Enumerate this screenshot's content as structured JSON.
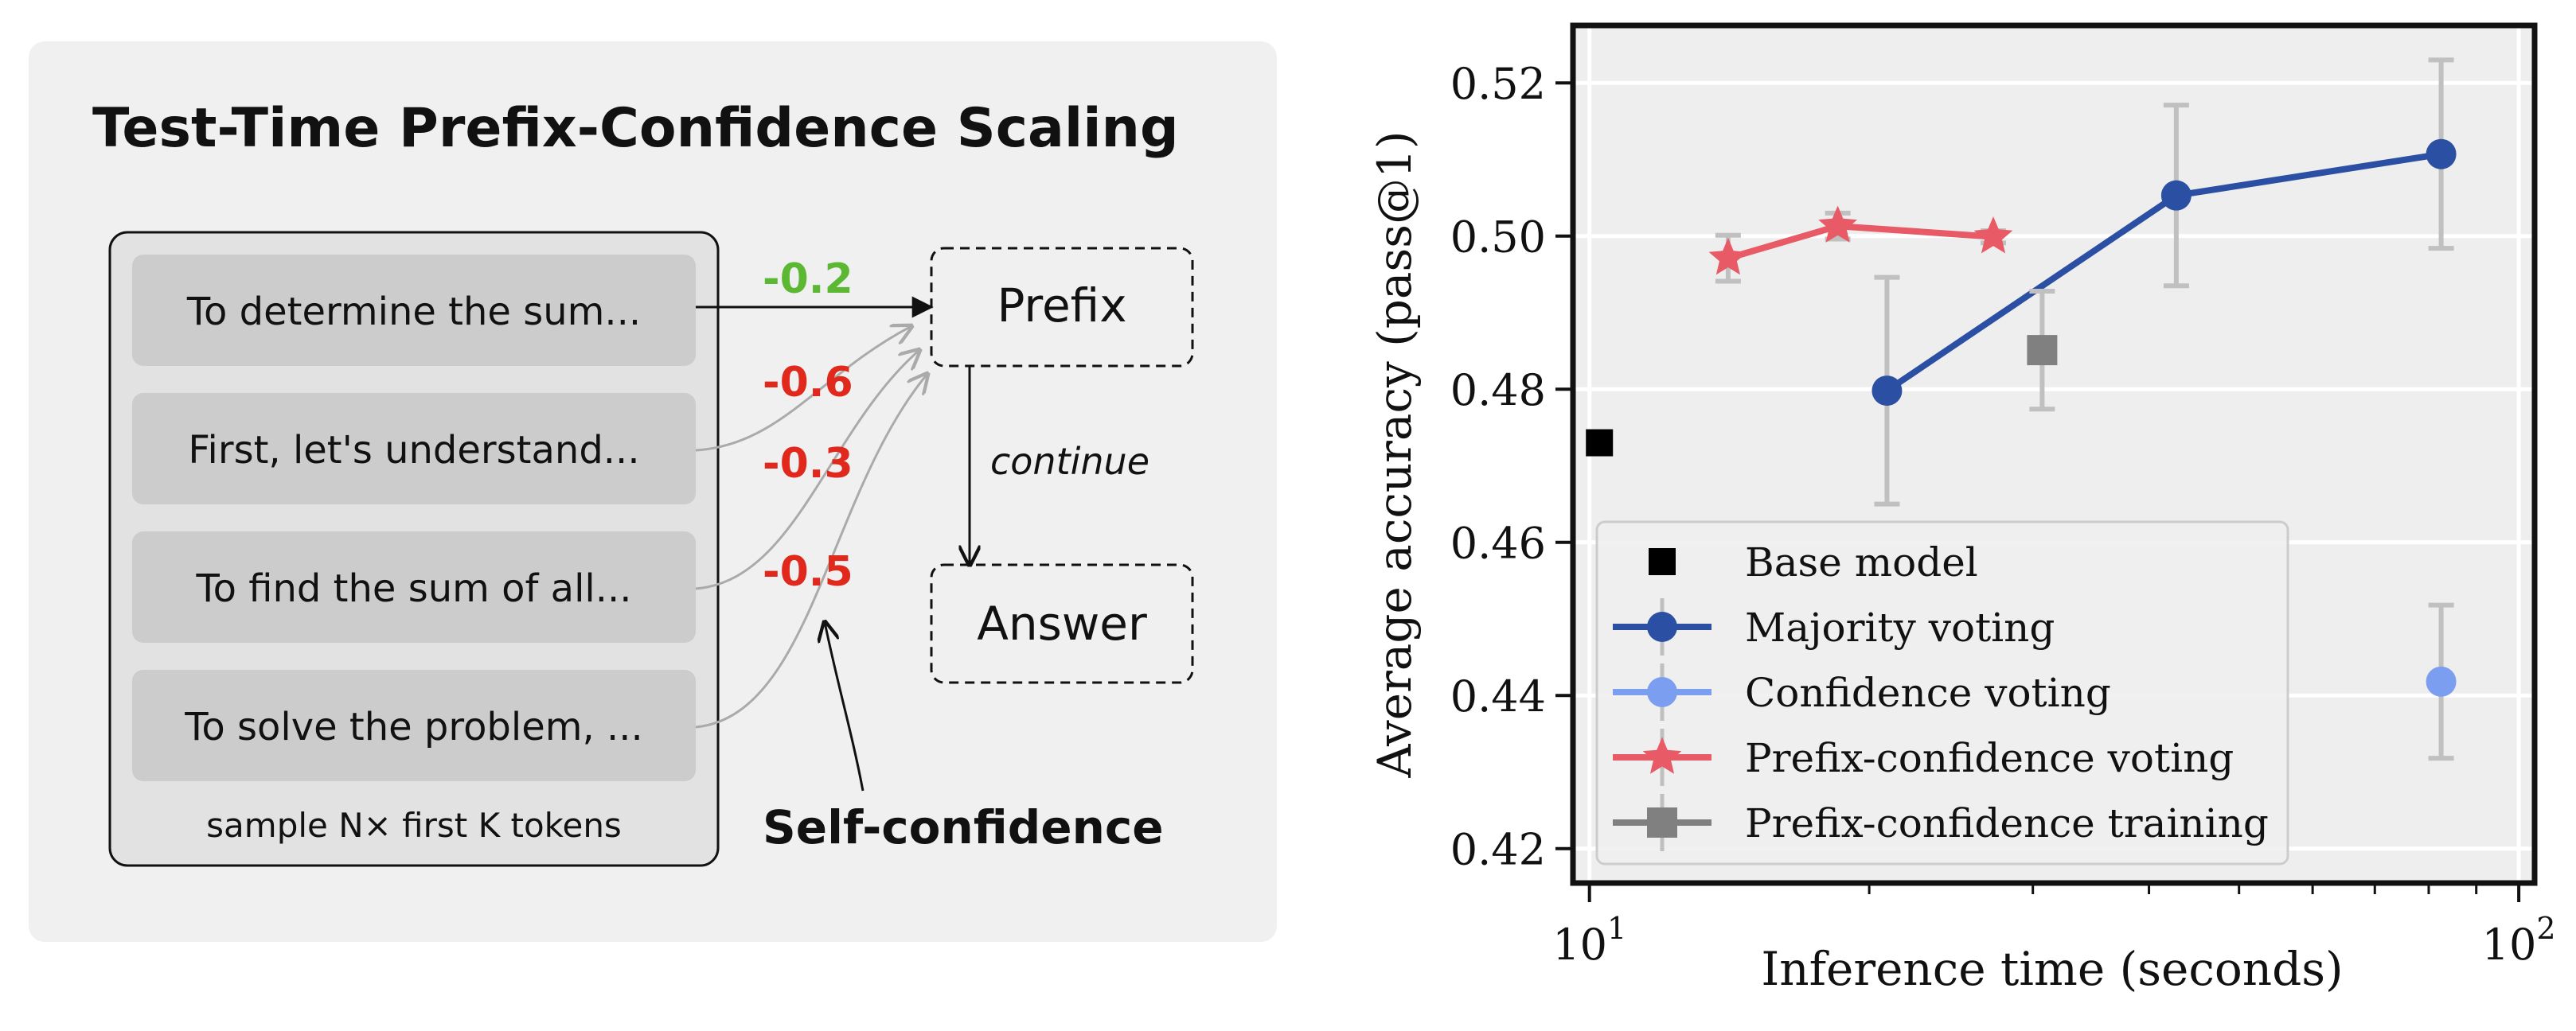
{
  "diagram": {
    "title": "Test-Time Prefix-Confidence Scaling",
    "samples": [
      "To determine the sum...",
      "First, let's understand...",
      "To find the sum of all...",
      "To solve the problem, ..."
    ],
    "sample_caption": "sample N× first K tokens",
    "scores": [
      "-0.2",
      "-0.6",
      "-0.3",
      "-0.5"
    ],
    "prefix_label": "Prefix",
    "continue_label": "continue",
    "answer_label": "Answer",
    "self_confidence_label": "Self-confidence",
    "colors": {
      "best_score": "#5cb832",
      "other_score": "#e0281c",
      "panel_bg": "#f0f0f0",
      "sample_bg": "#cccccc"
    }
  },
  "chart_data": {
    "type": "scatter",
    "xlabel": "Inference time (seconds)",
    "ylabel": "Average accuracy (pass@1)",
    "x_scale": "log",
    "xlim": [
      9.6,
      104
    ],
    "ylim": [
      0.4155,
      0.5275
    ],
    "x_ticks": [
      {
        "value": 10,
        "base": "10",
        "exp": "1"
      },
      {
        "value": 100,
        "base": "10",
        "exp": "2"
      }
    ],
    "y_ticks": [
      "0.42",
      "0.44",
      "0.46",
      "0.48",
      "0.50",
      "0.52"
    ],
    "grid": true,
    "legend_position": "lower-left",
    "series": [
      {
        "name": "Base model",
        "color": "#000000",
        "marker": "square",
        "line": false,
        "points": [
          {
            "x": 10.25,
            "y": 0.473
          }
        ]
      },
      {
        "name": "Majority voting",
        "color": "#2b4fa3",
        "marker": "circle",
        "line": true,
        "points": [
          {
            "x": 20.9,
            "y": 0.4798,
            "err": 0.0148
          },
          {
            "x": 42.8,
            "y": 0.5053,
            "err": 0.0118
          },
          {
            "x": 82.5,
            "y": 0.5107,
            "err": 0.0123
          }
        ]
      },
      {
        "name": "Confidence voting",
        "color": "#7b9ef0",
        "marker": "circle",
        "line": true,
        "points": [
          {
            "x": 82.5,
            "y": 0.4418,
            "err": 0.01
          }
        ]
      },
      {
        "name": "Prefix-confidence voting",
        "color": "#e85a66",
        "marker": "star",
        "line": true,
        "points": [
          {
            "x": 14.1,
            "y": 0.4971,
            "err": 0.003
          },
          {
            "x": 18.5,
            "y": 0.5013,
            "err": 0.0017
          },
          {
            "x": 27.2,
            "y": 0.4999,
            "err": 0.0008
          }
        ]
      },
      {
        "name": "Prefix-confidence training",
        "color": "#808080",
        "marker": "square",
        "line": true,
        "points": [
          {
            "x": 30.7,
            "y": 0.4851,
            "err": 0.0077
          }
        ]
      }
    ]
  }
}
